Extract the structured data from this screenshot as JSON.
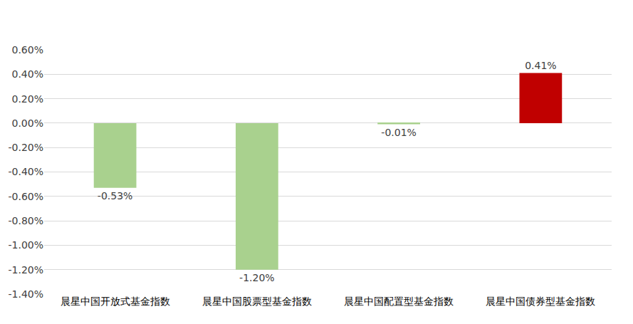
{
  "chart_data": {
    "type": "bar",
    "categories": [
      "晨星中国开放式基金指数",
      "晨星中国股票型基金指数",
      "晨星中国配置型基金指数",
      "晨星中国债券型基金指数"
    ],
    "values": [
      -0.53,
      -1.2,
      -0.01,
      0.41
    ],
    "value_labels": [
      "-0.53%",
      "-1.20%",
      "-0.01%",
      "0.41%"
    ],
    "colors": [
      "#a9d18e",
      "#a9d18e",
      "#a9d18e",
      "#c00000"
    ],
    "ylim": [
      -1.4,
      0.6
    ],
    "yticks": [
      {
        "value": -1.4,
        "label": "-1.40%"
      },
      {
        "value": -1.2,
        "label": "-1.20%"
      },
      {
        "value": -1.0,
        "label": "-1.00%"
      },
      {
        "value": -0.8,
        "label": "-0.80%"
      },
      {
        "value": -0.6,
        "label": "-0.60%"
      },
      {
        "value": -0.4,
        "label": "-0.40%"
      },
      {
        "value": -0.2,
        "label": "-0.20%"
      },
      {
        "value": 0,
        "label": "0.00%"
      },
      {
        "value": 0.2,
        "label": "0.20%"
      },
      {
        "value": 0.4,
        "label": "0.40%"
      },
      {
        "value": 0.6,
        "label": "0.60%"
      }
    ],
    "grid": true,
    "data_labels": true
  }
}
